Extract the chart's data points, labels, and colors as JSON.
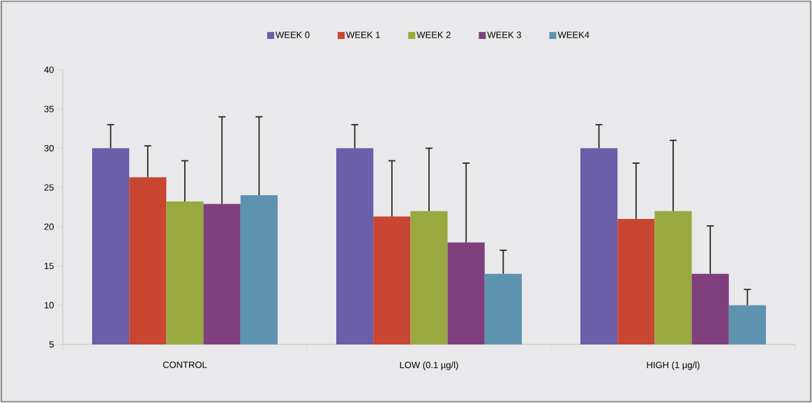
{
  "chart_data": {
    "type": "bar",
    "categories": [
      "CONTROL",
      "LOW (0.1 µg/l)",
      "HIGH (1 µg/l)"
    ],
    "series": [
      {
        "name": "WEEK 0",
        "color": "#6a5fa8",
        "values": [
          30,
          30,
          30
        ],
        "errors": [
          [
            30,
            33
          ],
          [
            30,
            33
          ],
          [
            30,
            33
          ]
        ]
      },
      {
        "name": "WEEK 1",
        "color": "#c84632",
        "values": [
          26.3,
          21.3,
          21
        ],
        "errors": [
          [
            26.3,
            30.3
          ],
          [
            21.3,
            28.4
          ],
          [
            21,
            28.1
          ]
        ]
      },
      {
        "name": "WEEK 2",
        "color": "#9aa840",
        "values": [
          23.2,
          22,
          22
        ],
        "errors": [
          [
            23.2,
            28.4
          ],
          [
            22,
            30
          ],
          [
            22,
            31
          ]
        ]
      },
      {
        "name": "WEEK 3",
        "color": "#7e3f7c",
        "values": [
          22.9,
          18,
          14
        ],
        "errors": [
          [
            22.9,
            34
          ],
          [
            18,
            28.1
          ],
          [
            14,
            20.1
          ]
        ]
      },
      {
        "name": "WEEK4",
        "color": "#5e93b0",
        "values": [
          24,
          14,
          10
        ],
        "errors": [
          [
            24,
            34
          ],
          [
            14,
            17
          ],
          [
            10,
            12
          ]
        ]
      }
    ],
    "ylim": [
      5,
      40
    ],
    "yticks": [
      5,
      10,
      15,
      20,
      25,
      30,
      35,
      40
    ],
    "grid": false,
    "legend": "top"
  }
}
